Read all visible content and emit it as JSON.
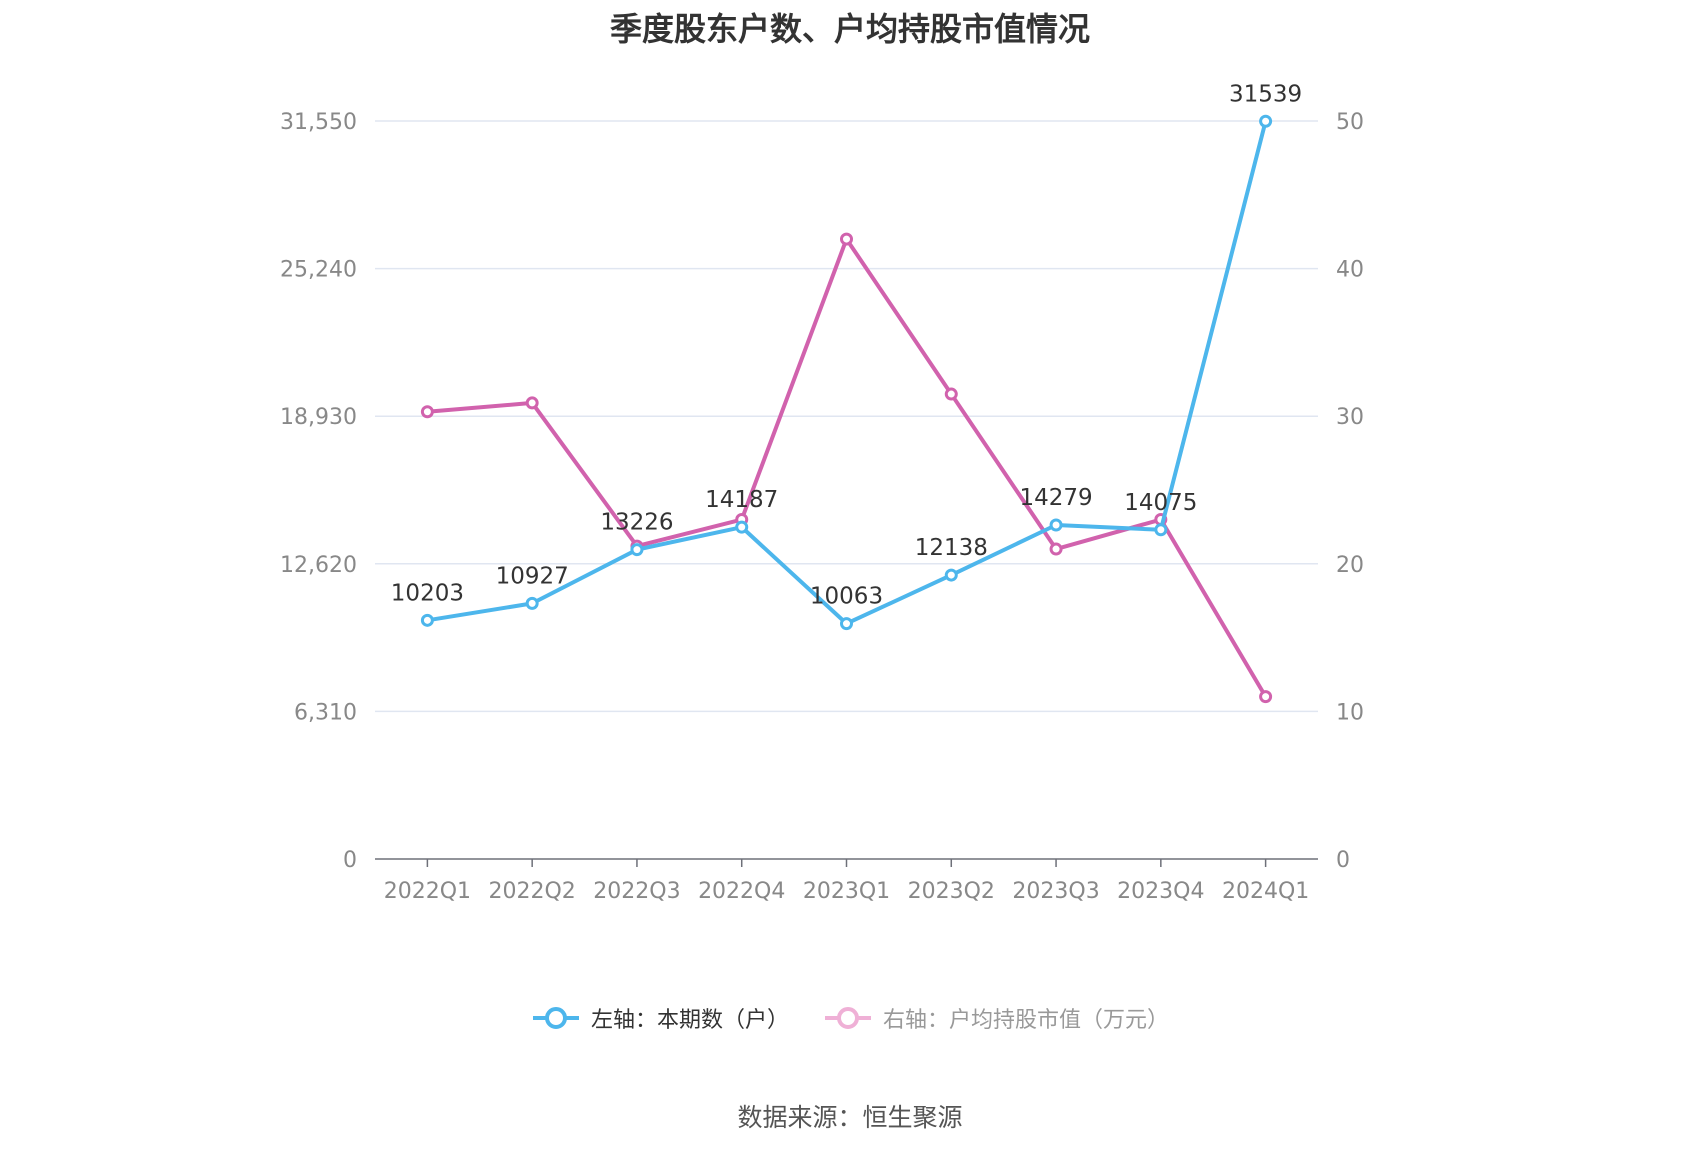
{
  "chart_data": {
    "type": "line",
    "title": "季度股东户数、户均持股市值情况",
    "categories": [
      "2022Q1",
      "2022Q2",
      "2022Q3",
      "2022Q4",
      "2023Q1",
      "2023Q2",
      "2023Q3",
      "2023Q4",
      "2024Q1"
    ],
    "left_axis": {
      "ylim": [
        0,
        31550
      ],
      "ticks": [
        "0",
        "6,310",
        "12,620",
        "18,930",
        "25,240",
        "31,550"
      ]
    },
    "right_axis": {
      "ylim": [
        0,
        50
      ],
      "ticks": [
        "0",
        "10",
        "20",
        "30",
        "40",
        "50"
      ]
    },
    "series": [
      {
        "name": "左轴：本期数（户）",
        "axis": "left",
        "color": "#4DB6EC",
        "values": [
          10203,
          10927,
          13226,
          14187,
          10063,
          12138,
          14279,
          14075,
          31539
        ],
        "labels": [
          "10203",
          "10927",
          "13226",
          "14187",
          "10063",
          "12138",
          "14279",
          "14075",
          "31539"
        ]
      },
      {
        "name": "右轴：户均持股市值（万元）",
        "axis": "right",
        "color": "#D162AD",
        "values": [
          30.3,
          30.9,
          21.2,
          23.0,
          42.0,
          31.5,
          21.0,
          23.0,
          11.0
        ]
      }
    ],
    "grid": true,
    "legend": "bottom"
  },
  "legend": {
    "series0": "左轴：本期数（户）",
    "series1": "右轴：户均持股市值（万元）"
  },
  "source": "数据来源：恒生聚源"
}
